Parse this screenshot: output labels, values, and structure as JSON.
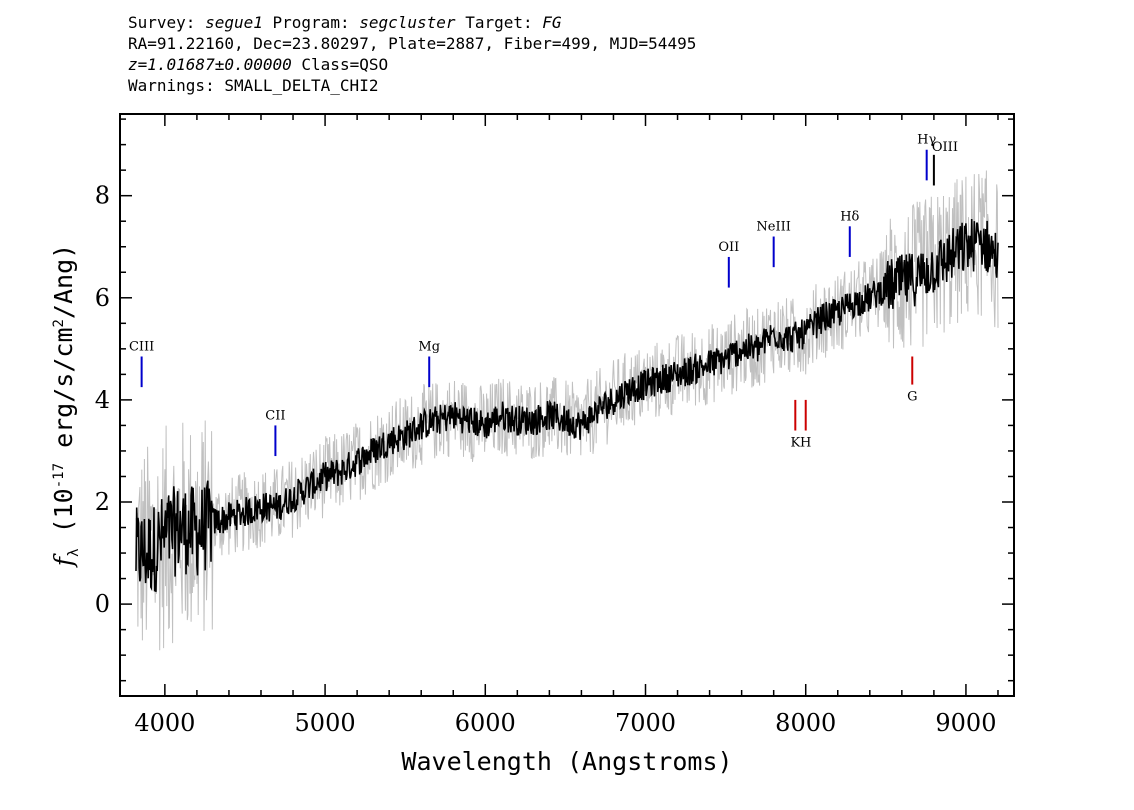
{
  "header": {
    "survey_label": "Survey:",
    "survey": "segue1",
    "program_label": "Program:",
    "program": "segcluster",
    "target_label": "Target:",
    "target": "FG",
    "line2": "RA=91.22160, Dec=23.80297, Plate=2887, Fiber=499, MJD=54495",
    "redshift": "z=1.01687±0.00000",
    "class": "Class=QSO",
    "warnings": "Warnings: SMALL_DELTA_CHI2"
  },
  "chart_data": {
    "type": "line",
    "xlabel": "Wavelength (Angstroms)",
    "ylabel": "f_λ (10^-17 erg/s/cm^2/Ang)",
    "xlim": [
      3720,
      9300
    ],
    "ylim": [
      -1.8,
      9.6
    ],
    "xticks": [
      4000,
      5000,
      6000,
      7000,
      8000,
      9000
    ],
    "yticks": [
      0,
      2,
      4,
      6,
      8
    ],
    "grid": false,
    "series": [
      {
        "style": "black smoothed spectrum",
        "color": "#000000",
        "x": [
          3820,
          3900,
          4000,
          4100,
          4200,
          4300,
          4400,
          4500,
          4600,
          4700,
          4800,
          4900,
          5000,
          5100,
          5200,
          5300,
          5400,
          5500,
          5600,
          5700,
          5800,
          5900,
          6000,
          6100,
          6200,
          6300,
          6400,
          6500,
          6600,
          6700,
          6800,
          6900,
          7000,
          7100,
          7200,
          7300,
          7400,
          7500,
          7600,
          7700,
          7800,
          7900,
          8000,
          8100,
          8200,
          8300,
          8400,
          8500,
          8600,
          8700,
          8800,
          8900,
          9000,
          9100,
          9200
        ],
        "y": [
          1.0,
          1.0,
          1.3,
          1.5,
          1.4,
          1.6,
          1.7,
          1.8,
          1.9,
          1.9,
          2.1,
          2.3,
          2.5,
          2.6,
          2.8,
          3.0,
          3.2,
          3.3,
          3.5,
          3.6,
          3.7,
          3.6,
          3.5,
          3.7,
          3.6,
          3.6,
          3.7,
          3.6,
          3.5,
          3.8,
          4.0,
          4.2,
          4.3,
          4.4,
          4.5,
          4.6,
          4.7,
          4.8,
          5.0,
          5.0,
          5.3,
          5.2,
          5.3,
          5.6,
          5.7,
          5.9,
          6.0,
          6.2,
          6.3,
          6.4,
          6.6,
          6.8,
          7.0,
          7.1,
          6.8
        ]
      },
      {
        "style": "grey noisy flux",
        "color": "#c0c0c0"
      }
    ],
    "lines": [
      {
        "label": "CIII",
        "x": 3855,
        "color": "#0000cc",
        "ymin": 4.25,
        "ymax": 4.85,
        "label_pos": "above"
      },
      {
        "label": "CII",
        "x": 4690,
        "color": "#0000cc",
        "ymin": 2.9,
        "ymax": 3.5,
        "label_pos": "above"
      },
      {
        "label": "Mg",
        "x": 5650,
        "color": "#0000cc",
        "ymin": 4.25,
        "ymax": 4.85,
        "label_pos": "above"
      },
      {
        "label": "OII",
        "x": 7520,
        "color": "#0000cc",
        "ymin": 6.2,
        "ymax": 6.8,
        "label_pos": "above"
      },
      {
        "label": "NeIII",
        "x": 7800,
        "color": "#0000cc",
        "ymin": 6.6,
        "ymax": 7.2,
        "label_pos": "above"
      },
      {
        "label": "Hδ",
        "x": 8275,
        "color": "#0000cc",
        "ymin": 6.8,
        "ymax": 7.4,
        "label_pos": "above"
      },
      {
        "label": "Hγ",
        "x": 8755,
        "color": "#0000cc",
        "ymin": 8.3,
        "ymax": 8.9,
        "label_pos": "above"
      },
      {
        "label": "OIII",
        "x": 8800,
        "color": "#000000",
        "ymin": 8.2,
        "ymax": 8.8,
        "label_pos": "above-right"
      },
      {
        "label": "K",
        "x": 7935,
        "color": "#cc0000",
        "ymin": 3.4,
        "ymax": 4.0,
        "label_pos": "below"
      },
      {
        "label": "H",
        "x": 8000,
        "color": "#cc0000",
        "ymin": 3.4,
        "ymax": 4.0,
        "label_pos": "below"
      },
      {
        "label": "G",
        "x": 8665,
        "color": "#cc0000",
        "ymin": 4.3,
        "ymax": 4.85,
        "label_pos": "below"
      }
    ]
  }
}
